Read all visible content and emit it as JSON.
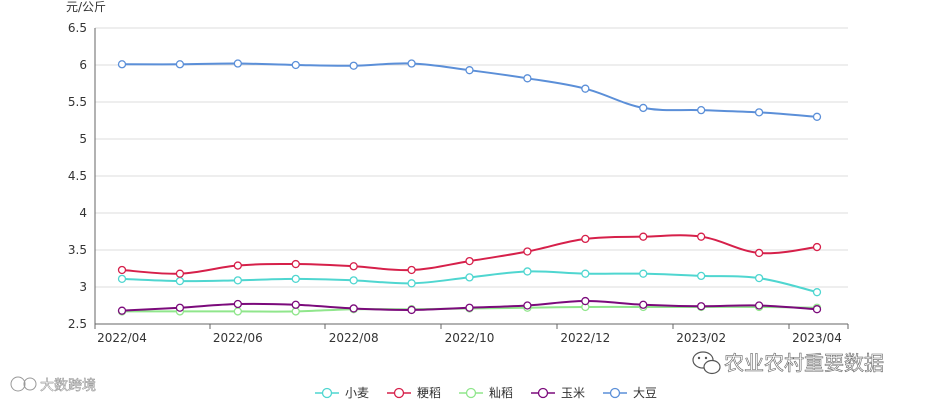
{
  "chart_data": {
    "type": "line",
    "ylabel": "元/公斤",
    "ylim": [
      2.5,
      6.5
    ],
    "yticks": [
      2.5,
      3,
      3.5,
      4,
      4.5,
      5,
      5.5,
      6,
      6.5
    ],
    "ytick_labels": [
      "2.5",
      "3",
      "3.5",
      "4",
      "4.5",
      "5",
      "5.5",
      "6",
      "6.5"
    ],
    "x": [
      "2022/04",
      "2022/05",
      "2022/06",
      "2022/07",
      "2022/08",
      "2022/09",
      "2022/10",
      "2022/11",
      "2022/12",
      "2023/01",
      "2023/02",
      "2023/03",
      "2023/04"
    ],
    "x_tick_labels": [
      "2022/04",
      "2022/06",
      "2022/08",
      "2022/10",
      "2022/12",
      "2023/02",
      "2023/04"
    ],
    "grid": true,
    "legend_position": "bottom-center",
    "series": [
      {
        "name": "小麦",
        "color": "#4fd6d0",
        "values": [
          3.11,
          3.08,
          3.09,
          3.11,
          3.09,
          3.05,
          3.13,
          3.21,
          3.18,
          3.18,
          3.15,
          3.12,
          2.93
        ]
      },
      {
        "name": "粳稻",
        "color": "#d6204a",
        "values": [
          3.23,
          3.18,
          3.29,
          3.31,
          3.28,
          3.23,
          3.35,
          3.48,
          3.65,
          3.68,
          3.68,
          3.46,
          3.54
        ]
      },
      {
        "name": "籼稻",
        "color": "#90e68c",
        "values": [
          2.67,
          2.67,
          2.67,
          2.67,
          2.7,
          2.7,
          2.71,
          2.72,
          2.73,
          2.73,
          2.73,
          2.73,
          2.72
        ]
      },
      {
        "name": "玉米",
        "color": "#7b0a7b",
        "values": [
          2.68,
          2.72,
          2.77,
          2.76,
          2.71,
          2.69,
          2.72,
          2.75,
          2.81,
          2.76,
          2.74,
          2.75,
          2.7
        ]
      },
      {
        "name": "大豆",
        "color": "#5b8fd8",
        "values": [
          6.01,
          6.01,
          6.02,
          6.0,
          5.99,
          6.02,
          5.93,
          5.82,
          5.68,
          5.42,
          5.39,
          5.36,
          5.3
        ]
      }
    ]
  },
  "watermarks": {
    "left": "大数跨境",
    "right": "农业农村重要数据"
  }
}
